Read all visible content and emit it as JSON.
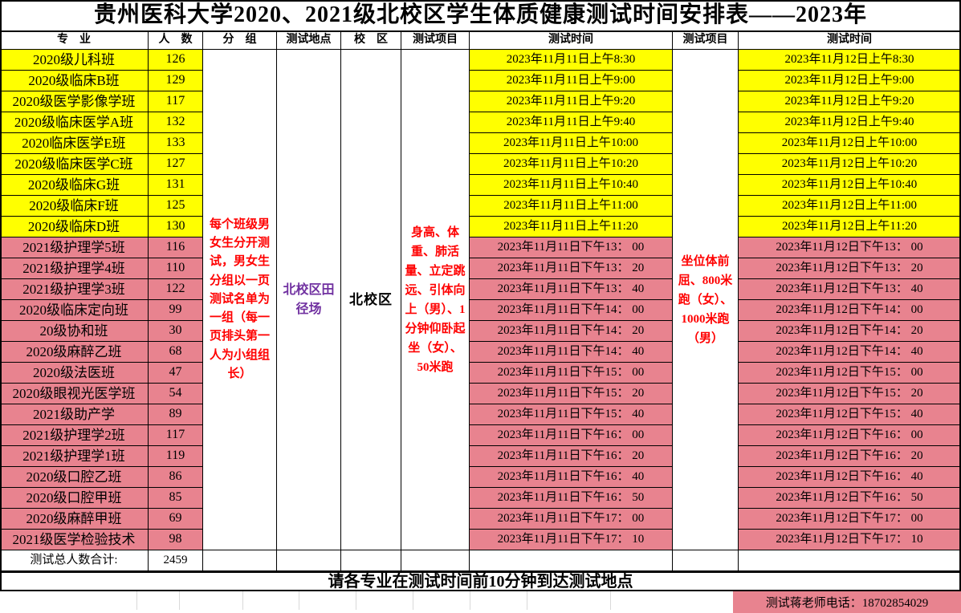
{
  "title": "贵州医科大学2020、2021级北校区学生体质健康测试时间安排表——2023年",
  "columns": {
    "major": "专　业",
    "count": "人　数",
    "group": "分　组",
    "location": "测试地点",
    "campus": "校　区",
    "items1": "测试项目",
    "time1": "测试时间",
    "items2": "测试项目",
    "time2": "测试时间"
  },
  "merged": {
    "group_note": "每个班级男女生分开测试，男女生分组以一页测试名单为一组（每一页排头第一人为小组组长）",
    "location": "北校区田径场",
    "campus": "北校区",
    "items1": "身高、体重、肺活量、立定跳远、引体向上（男）、1分钟仰卧起坐（女）、50米跑",
    "items2": "坐位体前屈、800米跑（女）、1000米跑（男）"
  },
  "rows": [
    {
      "major": "2020级儿科班",
      "count": "126",
      "time1": "2023年11月11日上午8:30",
      "time2": "2023年11月12日上午8:30",
      "band": "yellow"
    },
    {
      "major": "2020级临床B班",
      "count": "129",
      "time1": "2023年11月11日上午9:00",
      "time2": "2023年11月12日上午9:00",
      "band": "yellow"
    },
    {
      "major": "2020级医学影像学班",
      "count": "117",
      "time1": "2023年11月11日上午9:20",
      "time2": "2023年11月12日上午9:20",
      "band": "yellow"
    },
    {
      "major": "2020级临床医学A班",
      "count": "132",
      "time1": "2023年11月11日上午9:40",
      "time2": "2023年11月12日上午9:40",
      "band": "yellow"
    },
    {
      "major": "2020临床医学E班",
      "count": "133",
      "time1": "2023年11月11日上午10:00",
      "time2": "2023年11月12日上午10:00",
      "band": "yellow"
    },
    {
      "major": "2020级临床医学C班",
      "count": "127",
      "time1": "2023年11月11日上午10:20",
      "time2": "2023年11月12日上午10:20",
      "band": "yellow"
    },
    {
      "major": "2020级临床G班",
      "count": "131",
      "time1": "2023年11月11日上午10:40",
      "time2": "2023年11月12日上午10:40",
      "band": "yellow"
    },
    {
      "major": "2020级临床F班",
      "count": "125",
      "time1": "2023年11月11日上午11:00",
      "time2": "2023年11月12日上午11:00",
      "band": "yellow"
    },
    {
      "major": "2020级临床D班",
      "count": "130",
      "time1": "2023年11月11日上午11:20",
      "time2": "2023年11月12日上午11:20",
      "band": "yellow"
    },
    {
      "major": "2021级护理学5班",
      "count": "116",
      "time1": "2023年11月11日下午13： 00",
      "time2": "2023年11月12日下午13： 00",
      "band": "pink"
    },
    {
      "major": "2021级护理学4班",
      "count": "110",
      "time1": "2023年11月11日下午13： 20",
      "time2": "2023年11月12日下午13： 20",
      "band": "pink"
    },
    {
      "major": "2021级护理学3班",
      "count": "122",
      "time1": "2023年11月11日下午13： 40",
      "time2": "2023年11月12日下午13： 40",
      "band": "pink"
    },
    {
      "major": "2020级临床定向班",
      "count": "99",
      "time1": "2023年11月11日下午14： 00",
      "time2": "2023年11月12日下午14： 00",
      "band": "pink"
    },
    {
      "major": "20级协和班",
      "count": "30",
      "time1": "2023年11月11日下午14： 20",
      "time2": "2023年11月12日下午14： 20",
      "band": "pink"
    },
    {
      "major": "2020级麻醉乙班",
      "count": "68",
      "time1": "2023年11月11日下午14： 40",
      "time2": "2023年11月12日下午14： 40",
      "band": "pink"
    },
    {
      "major": "2020级法医班",
      "count": "47",
      "time1": "2023年11月11日下午15： 00",
      "time2": "2023年11月12日下午15： 00",
      "band": "pink"
    },
    {
      "major": "2020级眼视光医学班",
      "count": "54",
      "time1": "2023年11月11日下午15： 20",
      "time2": "2023年11月12日下午15： 20",
      "band": "pink"
    },
    {
      "major": "2021级助产学",
      "count": "89",
      "time1": "2023年11月11日下午15： 40",
      "time2": "2023年11月12日下午15： 40",
      "band": "pink"
    },
    {
      "major": "2021级护理学2班",
      "count": "117",
      "time1": "2023年11月11日下午16： 00",
      "time2": "2023年11月12日下午16： 00",
      "band": "pink"
    },
    {
      "major": "2021级护理学1班",
      "count": "119",
      "time1": "2023年11月11日下午16： 20",
      "time2": "2023年11月12日下午16： 20",
      "band": "pink"
    },
    {
      "major": "2020级口腔乙班",
      "count": "86",
      "time1": "2023年11月11日下午16： 40",
      "time2": "2023年11月12日下午16： 40",
      "band": "pink"
    },
    {
      "major": "2020级口腔甲班",
      "count": "85",
      "time1": "2023年11月11日下午16： 50",
      "time2": "2023年11月12日下午16： 50",
      "band": "pink"
    },
    {
      "major": "2020级麻醉甲班",
      "count": "69",
      "time1": "2023年11月11日下午17： 00",
      "time2": "2023年11月12日下午17： 00",
      "band": "pink"
    },
    {
      "major": "2021级医学检验技术",
      "count": "98",
      "time1": "2023年11月11日下午17： 10",
      "time2": "2023年11月12日下午17： 10",
      "band": "pink"
    }
  ],
  "total": {
    "label": "测试总人数合计:",
    "value": "2459"
  },
  "notice": "请各专业在测试时间前10分钟到达测试地点",
  "footer": {
    "contact": "测试蒋老师电话：18702854029"
  },
  "colors": {
    "yellow": "#FFFF00",
    "pink": "#E8838F",
    "red_text": "#FF0000",
    "purple_text": "#7030A0",
    "black": "#000000"
  }
}
